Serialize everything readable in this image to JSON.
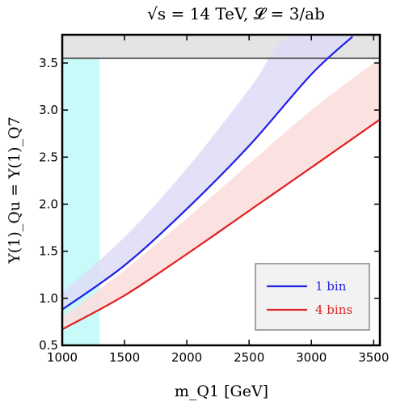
{
  "chart_data": {
    "type": "line",
    "title": "√s = 14 TeV,  𝓛 = 3/ab",
    "xlabel": "m_Q1 [GeV]",
    "ylabel": "Y(1)_Qu = Y(1)_Q7",
    "xlim": [
      1000,
      3550
    ],
    "ylim": [
      0.5,
      3.8
    ],
    "x_ticks": [
      1000,
      1500,
      2000,
      2500,
      3000,
      3500
    ],
    "y_ticks": [
      0.5,
      1.0,
      1.5,
      2.0,
      2.5,
      3.0,
      3.5
    ],
    "x_tick_labels": [
      "1000",
      "1500",
      "2000",
      "2500",
      "3000",
      "3500"
    ],
    "y_tick_labels": [
      "0.5",
      "1.0",
      "1.5",
      "2.0",
      "2.5",
      "3.0",
      "3.5"
    ],
    "grid": false,
    "legend": {
      "placement": "bottom-right",
      "entries": [
        "1 bin",
        "4 bins"
      ]
    },
    "excluded_x_region": {
      "x": [
        1000,
        1300
      ],
      "color": "#c8fafa"
    },
    "excluded_y_region": {
      "y": [
        3.55,
        3.8
      ],
      "color": "#e4e4e4",
      "line_y": 3.55
    },
    "series": [
      {
        "name": "1 bin",
        "color": "#1f1fe6",
        "band_color": "#dedcf6",
        "x": [
          1000,
          1500,
          2000,
          2500,
          3000,
          3330
        ],
        "y": [
          0.88,
          1.35,
          1.95,
          2.62,
          3.38,
          3.78
        ],
        "band_lower": [
          0.88,
          1.35,
          1.95,
          2.62,
          3.38,
          3.78
        ],
        "band_upper": [
          1.06,
          1.65,
          2.38,
          3.22,
          3.8,
          3.8
        ],
        "band_x": [
          1000,
          1500,
          2000,
          2500,
          2830,
          3330
        ]
      },
      {
        "name": "4 bins",
        "color": "#e02020",
        "band_color": "#fcdcdc",
        "x": [
          1000,
          1500,
          2000,
          2500,
          3000,
          3550
        ],
        "y": [
          0.67,
          1.03,
          1.47,
          1.93,
          2.39,
          2.9
        ],
        "band_lower": [
          0.67,
          1.03,
          1.47,
          1.93,
          2.39,
          2.9
        ],
        "band_upper": [
          0.8,
          1.3,
          1.85,
          2.43,
          3.0,
          3.55
        ]
      }
    ]
  }
}
